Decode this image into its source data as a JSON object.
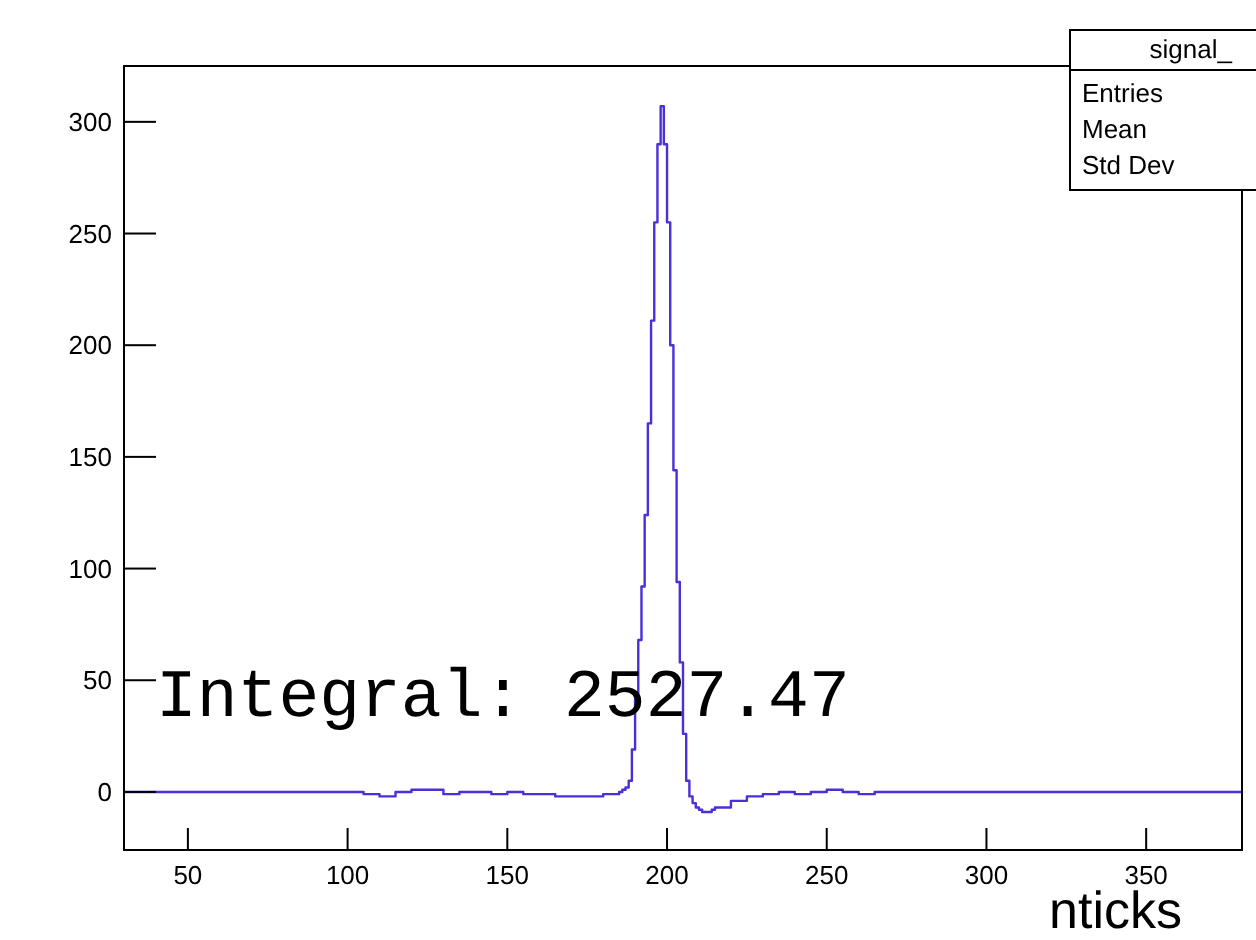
{
  "chart_data": {
    "type": "histogram",
    "title": "signal_",
    "xlabel": "nticks",
    "annotations": [
      "Entries",
      "Mean",
      "Std Dev",
      "Integral: 2527.47"
    ],
    "bins": [
      30,
      105,
      110,
      115,
      120,
      125,
      130,
      135,
      140,
      145,
      150,
      155,
      160,
      165,
      170,
      175,
      180,
      185,
      186,
      187,
      188,
      189,
      190,
      191,
      192,
      193,
      194,
      195,
      196,
      197,
      198,
      199,
      200,
      201,
      202,
      203,
      204,
      205,
      206,
      207,
      208,
      209,
      210,
      211,
      212,
      213,
      214,
      215,
      220,
      225,
      230,
      235,
      240,
      245,
      250,
      255,
      260,
      265,
      270,
      275,
      380
    ],
    "values": [
      0,
      -1,
      -2,
      0,
      1,
      1,
      -1,
      0,
      0,
      -1,
      0,
      -1,
      -1,
      -2,
      -2,
      -2,
      -1,
      0,
      1,
      2,
      5,
      19,
      43,
      68,
      92,
      124,
      165,
      211,
      255,
      290,
      307,
      290,
      255,
      200,
      144,
      94,
      58,
      26,
      5,
      -2,
      -5,
      -7,
      -8,
      -9,
      -9,
      -9,
      -8,
      -7,
      -4,
      -2,
      -1,
      0,
      -1,
      0,
      1,
      0,
      -1,
      0,
      0,
      0
    ],
    "color": "#4b2fd9",
    "xlim": [
      30,
      380
    ],
    "ylim": [
      -26,
      325
    ],
    "xticks": [
      50,
      100,
      150,
      200,
      250,
      300,
      350
    ],
    "yticks": [
      0,
      50,
      100,
      150,
      200,
      250,
      300
    ]
  }
}
